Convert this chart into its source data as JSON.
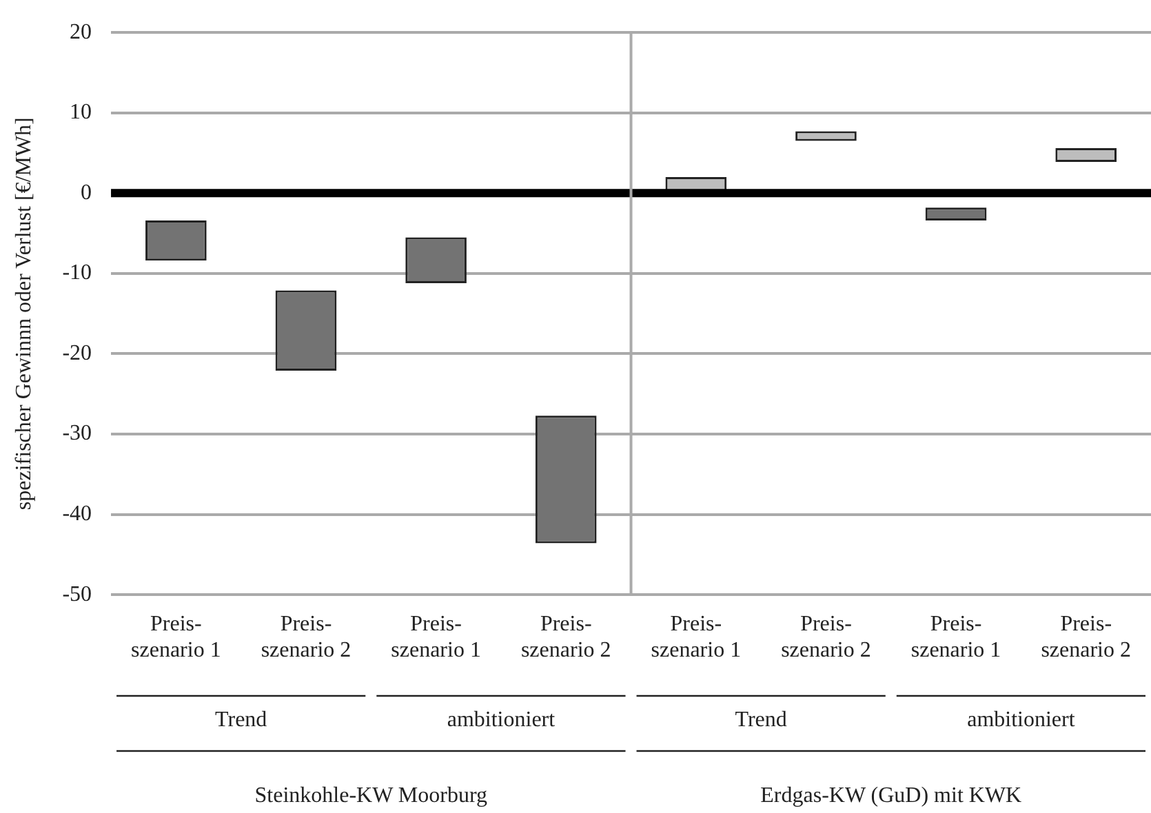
{
  "chart_data": {
    "type": "bar",
    "ylabel": "spezifischer Gewinnn oder Verlust [€/MWh]",
    "categories": [
      "Preis-\nszenario 1",
      "Preis-\nszenario 2",
      "Preis-\nszenario 1",
      "Preis-\nszenario 2",
      "Preis-\nszenario 1",
      "Preis-\nszenario 2",
      "Preis-\nszenario 1",
      "Preis-\nszenario 2"
    ],
    "values": [
      5.0,
      10.0,
      5.7,
      15.9,
      2.0,
      1.2,
      1.6,
      1.7
    ],
    "base": [
      -8.4,
      -22.1,
      -11.2,
      -43.6,
      0,
      6.5,
      -3.4,
      3.9
    ],
    "colors": [
      "#737373",
      "#737373",
      "#737373",
      "#737373",
      "#bdbdbd",
      "#bdbdbd",
      "#737373",
      "#bdbdbd"
    ],
    "ylim": [
      -50,
      20
    ],
    "yticks": [
      -50,
      -40,
      -30,
      -20,
      -10,
      0,
      10,
      20
    ],
    "grid": "y",
    "ref_lines": [
      {
        "axis": "y",
        "value": 0,
        "color": "#000000"
      }
    ],
    "annotations": [
      "Trend",
      "ambitioniert",
      "Trend",
      "ambitioniert",
      "Steinkohle-KW Moorburg",
      "Erdgas-KW (GuD) mit KWK"
    ]
  }
}
